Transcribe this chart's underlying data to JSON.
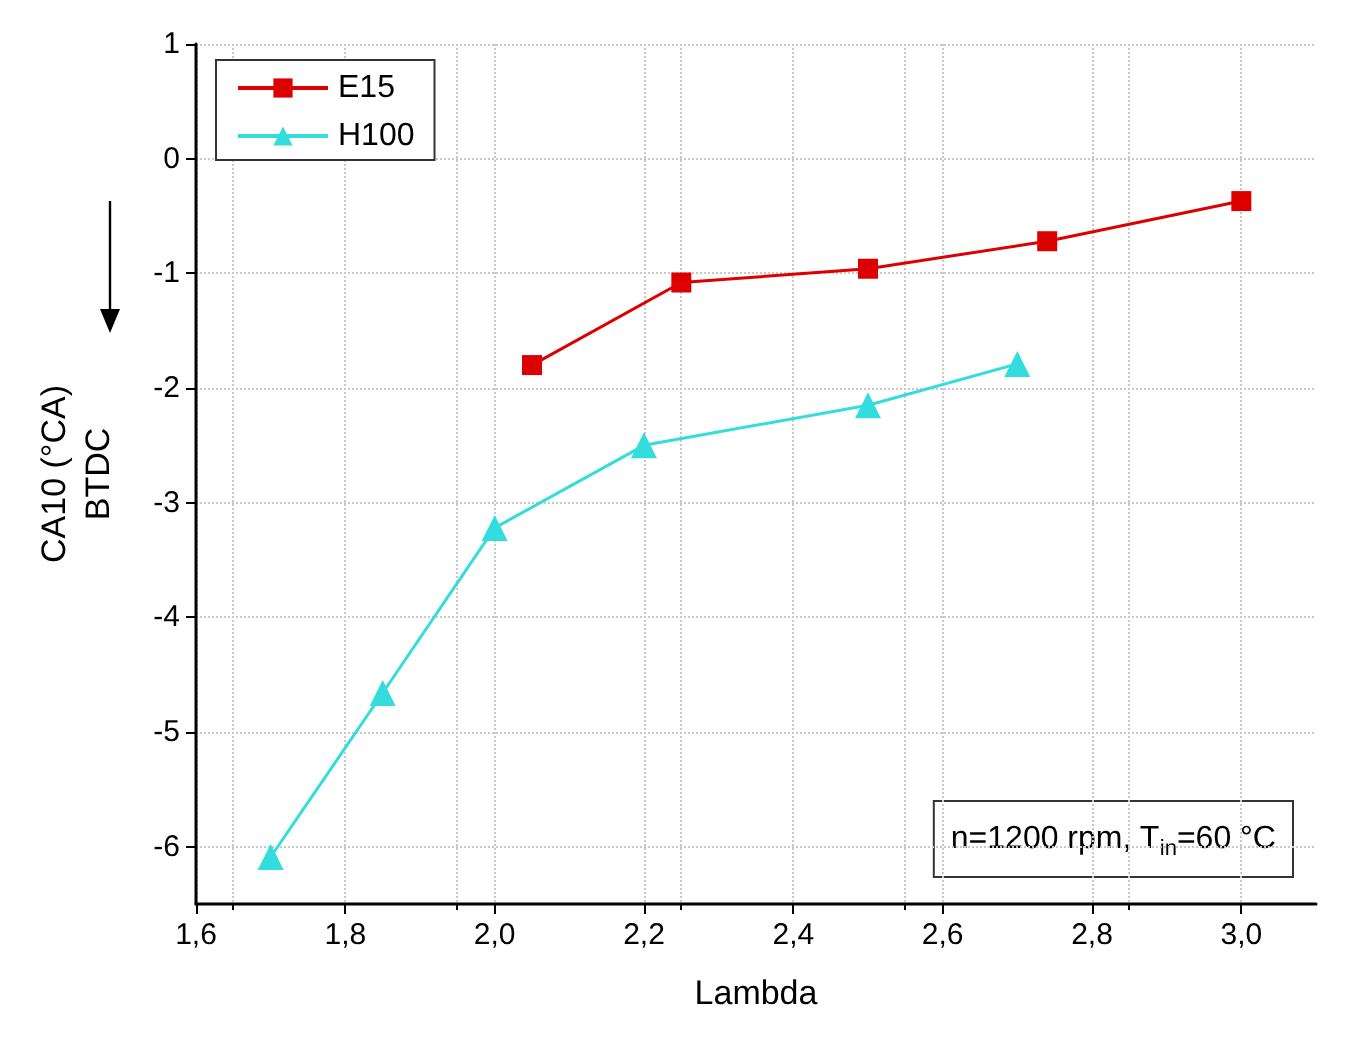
{
  "chart_data": {
    "type": "line",
    "xlabel": "Lambda",
    "ylabel": "CA10 (°CA)\nBTDC",
    "xlim": [
      1.6,
      3.1
    ],
    "ylim": [
      -6.5,
      1
    ],
    "xticks": [
      {
        "value": 1.6,
        "label": "1,6"
      },
      {
        "value": 1.8,
        "label": "1,8"
      },
      {
        "value": 2.0,
        "label": "2,0"
      },
      {
        "value": 2.2,
        "label": "2,2"
      },
      {
        "value": 2.4,
        "label": "2,4"
      },
      {
        "value": 2.6,
        "label": "2,6"
      },
      {
        "value": 2.8,
        "label": "2,8"
      },
      {
        "value": 3.0,
        "label": "3,0"
      }
    ],
    "yticks": [
      -6,
      -5,
      -4,
      -3,
      -2,
      -1,
      0,
      1
    ],
    "grid": true,
    "legend": "top left",
    "annotations": [
      "n=1200 rpm, T$_{in}$=60 °C"
    ],
    "series": [
      {
        "name": "E15",
        "color": "#dd0000",
        "marker": "square",
        "x": [
          2.05,
          2.25,
          2.5,
          2.74,
          3.0
        ],
        "values": [
          -1.8,
          -1.08,
          -0.96,
          -0.72,
          -0.37
        ]
      },
      {
        "name": "H100",
        "color": "#33dddd",
        "marker": "triangle",
        "x": [
          1.7,
          1.85,
          2.0,
          2.2,
          2.5,
          2.7
        ],
        "values": [
          -6.09,
          -4.66,
          -3.22,
          -2.5,
          -2.15,
          -1.79
        ]
      }
    ]
  }
}
